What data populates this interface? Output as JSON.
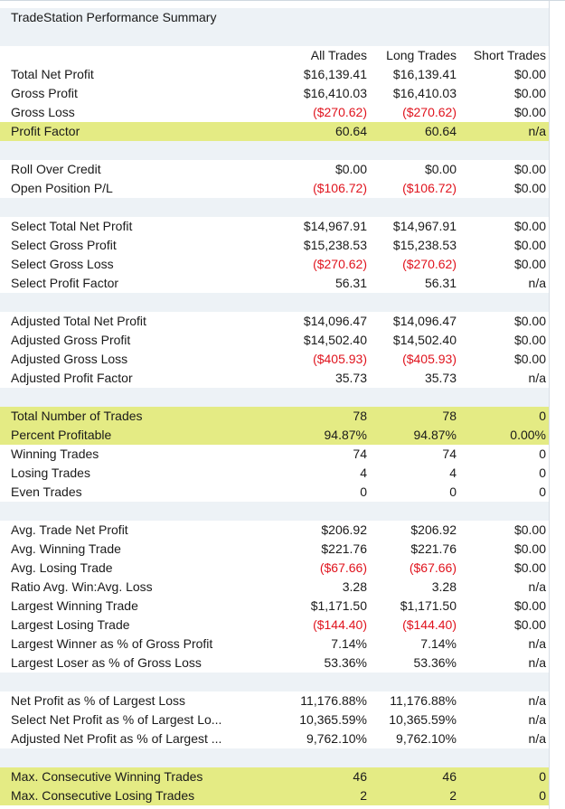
{
  "title": "TradeStation Performance Summary",
  "columns": [
    "All Trades",
    "Long Trades",
    "Short Trades"
  ],
  "colors": {
    "negative": "#e0141e",
    "highlight": "#e4eb84",
    "row_alt": "#edf2f6"
  },
  "sections": [
    {
      "rows": [
        {
          "label": "Total Net Profit",
          "values": [
            "$16,139.41",
            "$16,139.41",
            "$0.00"
          ]
        },
        {
          "label": "Gross Profit",
          "values": [
            "$16,410.03",
            "$16,410.03",
            "$0.00"
          ]
        },
        {
          "label": "Gross Loss",
          "values": [
            "($270.62)",
            "($270.62)",
            "$0.00"
          ]
        },
        {
          "label": "Profit Factor",
          "values": [
            "60.64",
            "60.64",
            "n/a"
          ],
          "highlight": true
        }
      ]
    },
    {
      "rows": [
        {
          "label": "Roll Over Credit",
          "values": [
            "$0.00",
            "$0.00",
            "$0.00"
          ]
        },
        {
          "label": "Open Position P/L",
          "values": [
            "($106.72)",
            "($106.72)",
            "$0.00"
          ]
        }
      ]
    },
    {
      "rows": [
        {
          "label": "Select Total Net Profit",
          "values": [
            "$14,967.91",
            "$14,967.91",
            "$0.00"
          ]
        },
        {
          "label": "Select Gross Profit",
          "values": [
            "$15,238.53",
            "$15,238.53",
            "$0.00"
          ]
        },
        {
          "label": "Select Gross Loss",
          "values": [
            "($270.62)",
            "($270.62)",
            "$0.00"
          ]
        },
        {
          "label": "Select Profit Factor",
          "values": [
            "56.31",
            "56.31",
            "n/a"
          ]
        }
      ]
    },
    {
      "rows": [
        {
          "label": "Adjusted Total Net Profit",
          "values": [
            "$14,096.47",
            "$14,096.47",
            "$0.00"
          ]
        },
        {
          "label": "Adjusted Gross Profit",
          "values": [
            "$14,502.40",
            "$14,502.40",
            "$0.00"
          ]
        },
        {
          "label": "Adjusted Gross Loss",
          "values": [
            "($405.93)",
            "($405.93)",
            "$0.00"
          ]
        },
        {
          "label": "Adjusted Profit Factor",
          "values": [
            "35.73",
            "35.73",
            "n/a"
          ]
        }
      ]
    },
    {
      "rows": [
        {
          "label": "Total Number of Trades",
          "values": [
            "78",
            "78",
            "0"
          ],
          "highlight": true
        },
        {
          "label": "Percent Profitable",
          "values": [
            "94.87%",
            "94.87%",
            "0.00%"
          ],
          "highlight": true
        },
        {
          "label": "Winning Trades",
          "values": [
            "74",
            "74",
            "0"
          ]
        },
        {
          "label": "Losing Trades",
          "values": [
            "4",
            "4",
            "0"
          ]
        },
        {
          "label": "Even Trades",
          "values": [
            "0",
            "0",
            "0"
          ]
        }
      ]
    },
    {
      "rows": [
        {
          "label": "Avg. Trade Net Profit",
          "values": [
            "$206.92",
            "$206.92",
            "$0.00"
          ]
        },
        {
          "label": "Avg. Winning Trade",
          "values": [
            "$221.76",
            "$221.76",
            "$0.00"
          ]
        },
        {
          "label": "Avg. Losing Trade",
          "values": [
            "($67.66)",
            "($67.66)",
            "$0.00"
          ]
        },
        {
          "label": "Ratio Avg. Win:Avg. Loss",
          "values": [
            "3.28",
            "3.28",
            "n/a"
          ]
        },
        {
          "label": "Largest Winning Trade",
          "values": [
            "$1,171.50",
            "$1,171.50",
            "$0.00"
          ]
        },
        {
          "label": "Largest Losing Trade",
          "values": [
            "($144.40)",
            "($144.40)",
            "$0.00"
          ]
        },
        {
          "label": "Largest Winner as % of Gross Profit",
          "values": [
            "7.14%",
            "7.14%",
            "n/a"
          ]
        },
        {
          "label": "Largest Loser as % of Gross Loss",
          "values": [
            "53.36%",
            "53.36%",
            "n/a"
          ]
        }
      ]
    },
    {
      "rows": [
        {
          "label": "Net Profit as % of Largest Loss",
          "values": [
            "11,176.88%",
            "11,176.88%",
            "n/a"
          ]
        },
        {
          "label": "Select Net Profit as % of Largest Lo...",
          "values": [
            "10,365.59%",
            "10,365.59%",
            "n/a"
          ]
        },
        {
          "label": "Adjusted Net Profit as % of Largest ...",
          "values": [
            "9,762.10%",
            "9,762.10%",
            "n/a"
          ]
        }
      ]
    },
    {
      "rows": [
        {
          "label": "Max. Consecutive Winning Trades",
          "values": [
            "46",
            "46",
            "0"
          ],
          "highlight": true
        },
        {
          "label": "Max. Consecutive Losing Trades",
          "values": [
            "2",
            "2",
            "0"
          ],
          "highlight": true
        }
      ]
    }
  ]
}
